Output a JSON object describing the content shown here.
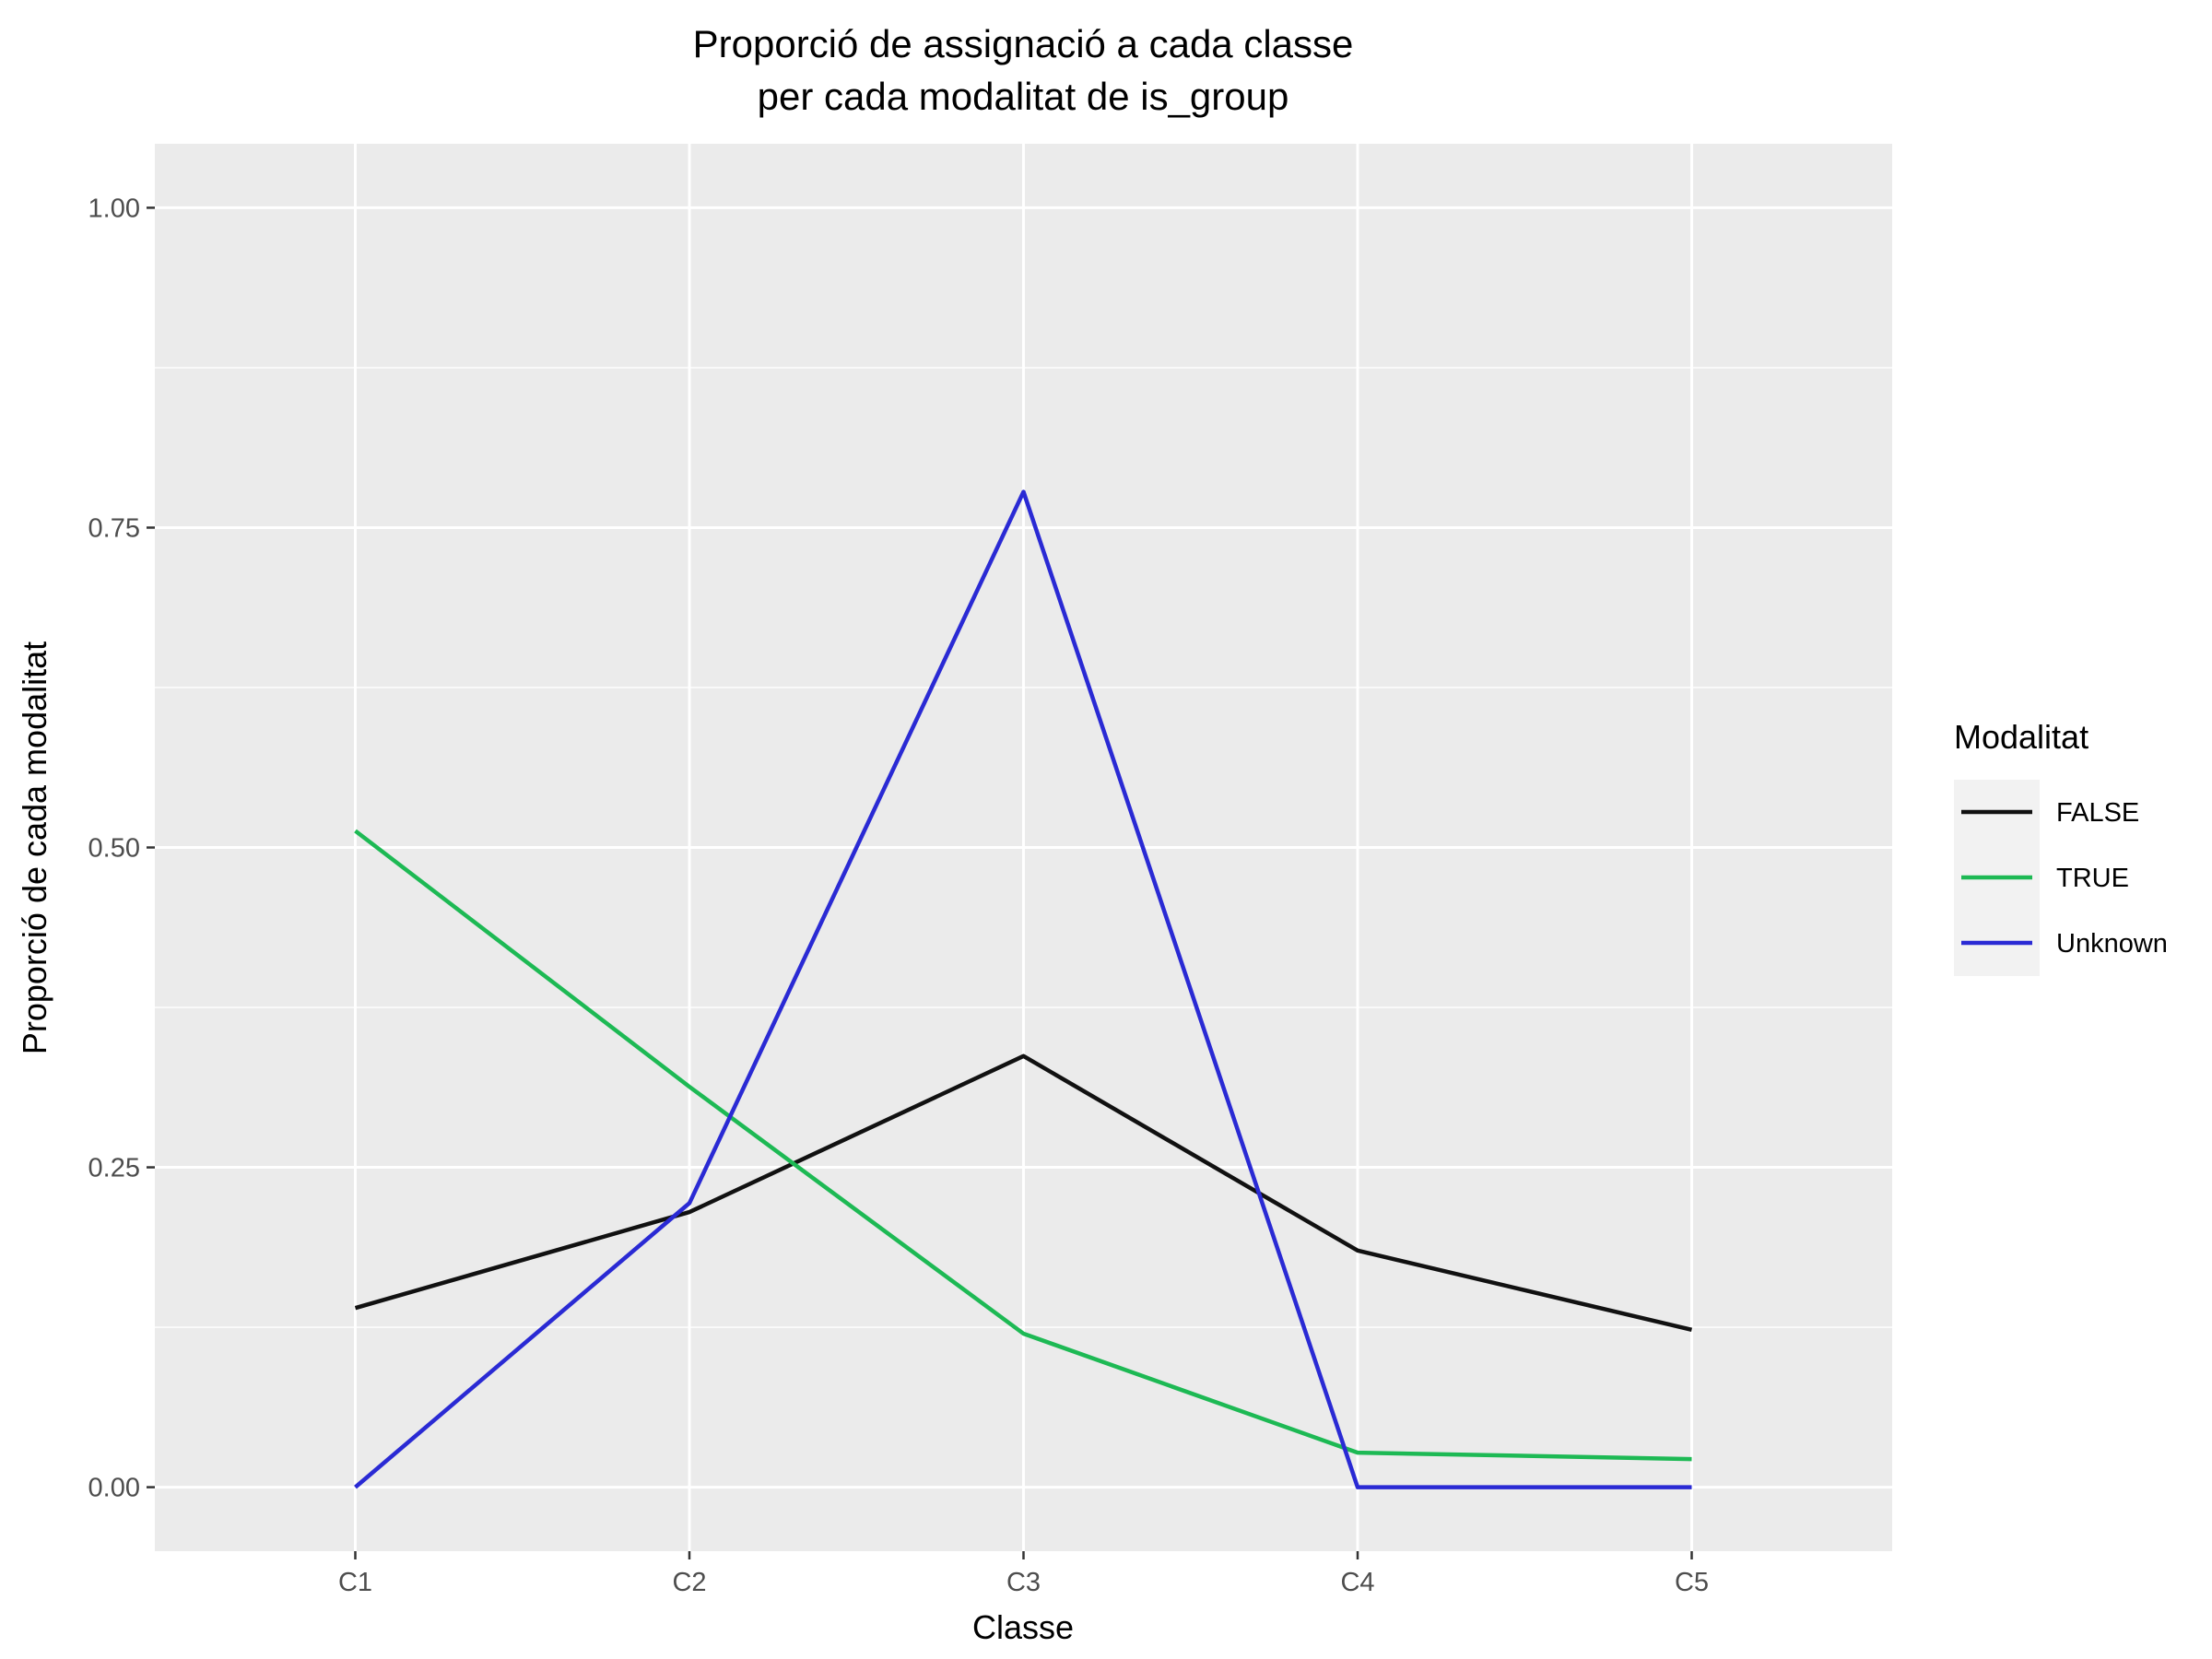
{
  "chart_data": {
    "type": "line",
    "title_lines": [
      "Proporció de assignació a cada classe",
      "per cada modalitat de is_group"
    ],
    "xlabel": "Classe",
    "ylabel": "Proporció de cada modalitat",
    "categories": [
      "C1",
      "C2",
      "C3",
      "C4",
      "C5"
    ],
    "ylim": [
      -0.05,
      1.05
    ],
    "y_ticks": [
      0,
      0.25,
      0.5,
      0.75,
      1.0
    ],
    "y_tick_labels": [
      "0.00",
      "0.25",
      "0.50",
      "0.75",
      "1.00"
    ],
    "grid": true,
    "legend": {
      "title": "Modalitat",
      "position": "right"
    },
    "series": [
      {
        "name": "FALSE",
        "color": "#111111",
        "values": [
          0.14,
          0.215,
          0.337,
          0.185,
          0.123
        ]
      },
      {
        "name": "TRUE",
        "color": "#1db954",
        "values": [
          0.513,
          0.313,
          0.12,
          0.027,
          0.022
        ]
      },
      {
        "name": "Unknown",
        "color": "#2a2ad4",
        "values": [
          0.0,
          0.222,
          0.778,
          0.0,
          0.0
        ]
      }
    ]
  }
}
